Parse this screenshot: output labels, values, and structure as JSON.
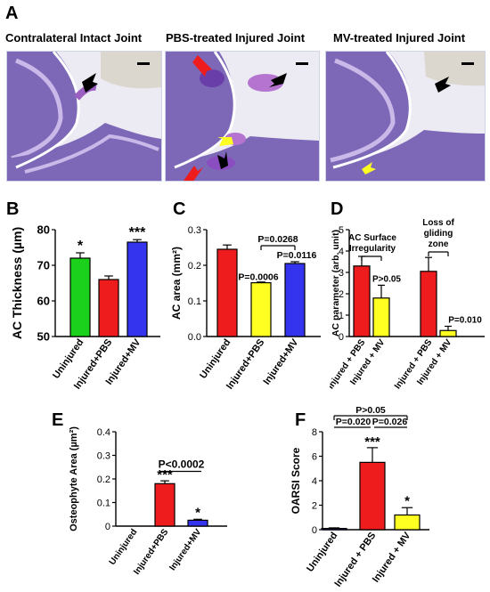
{
  "panel_a": {
    "letter": "A",
    "titles": [
      "Contralateral Intact Joint",
      "PBS-treated Injured Joint",
      "MV-treated Injured Joint"
    ]
  },
  "colors": {
    "green": "#1bd11b",
    "red": "#ee1c1c",
    "blue": "#3434ee",
    "yellow": "#ffff22",
    "tissue_purple": "#6d52b0",
    "tissue_bg": "#e8e9f4",
    "cartilage": "#9a5fc0"
  },
  "chart_data": [
    {
      "panel": "B",
      "type": "bar",
      "ylabel": "AC Thickness (µm)",
      "categories": [
        "Uninjured",
        "Injured+PBS",
        "Injured+MV"
      ],
      "values": [
        72,
        66,
        76.5
      ],
      "errors": [
        1.5,
        1.0,
        0.7
      ],
      "colors": [
        "#1bd11b",
        "#ee1c1c",
        "#3434ee"
      ],
      "ylim": [
        50,
        80
      ],
      "yticks": [
        50,
        60,
        70,
        80
      ],
      "annotations": [
        "*",
        "",
        "***"
      ]
    },
    {
      "panel": "C",
      "type": "bar",
      "ylabel": "AC area (mm²)",
      "categories": [
        "Uninjured",
        "Injured+PBS",
        "Injured+MV"
      ],
      "values": [
        0.245,
        0.151,
        0.205
      ],
      "errors": [
        0.012,
        0.002,
        0.005
      ],
      "colors": [
        "#ee1c1c",
        "#ffff22",
        "#3434ee"
      ],
      "ylim": [
        0,
        0.3
      ],
      "yticks": [
        0.0,
        0.1,
        0.2,
        0.3
      ],
      "annotations": [
        "P=0.0006",
        "P=0.0116"
      ],
      "bracket_label": "P=0.0268"
    },
    {
      "panel": "D",
      "type": "bar",
      "ylabel": "AC parameter (arb. unit)",
      "categories": [
        "Injured + PBS",
        "Injured + MV",
        "Injured + PBS",
        "Injured + MV"
      ],
      "groups": [
        "AC Surface Irregularity",
        "Loss of gliding zone"
      ],
      "values": [
        3.3,
        1.8,
        3.05,
        0.28
      ],
      "errors": [
        0.45,
        0.6,
        0.65,
        0.2
      ],
      "colors": [
        "#ee1c1c",
        "#ffff22",
        "#ee1c1c",
        "#ffff22"
      ],
      "ylim": [
        0,
        5
      ],
      "yticks": [
        0,
        1,
        2,
        3,
        4,
        5
      ],
      "annotations": [
        "P>0.05",
        "P=0.010"
      ]
    },
    {
      "panel": "E",
      "type": "bar",
      "ylabel": "Osteophyte Area (µm²)",
      "categories": [
        "Uninjured",
        "Injured+PBS",
        "Injured+MV"
      ],
      "values": [
        0,
        0.18,
        0.025
      ],
      "errors": [
        0,
        0.012,
        0.004
      ],
      "colors": [
        "#1bd11b",
        "#ee1c1c",
        "#3434ee"
      ],
      "ylim": [
        0,
        0.4
      ],
      "yticks": [
        0,
        0.1,
        0.2,
        0.3,
        0.4
      ],
      "annotations": [
        "***",
        "*"
      ],
      "bracket_label": "P<0.0002"
    },
    {
      "panel": "F",
      "type": "bar",
      "ylabel": "OARSI Score",
      "categories": [
        "Uninjured",
        "Injured + PBS",
        "Injured + MV"
      ],
      "values": [
        0.1,
        5.5,
        1.2
      ],
      "errors": [
        0.05,
        1.2,
        0.6
      ],
      "colors": [
        "#3434ee",
        "#ee1c1c",
        "#ffff22"
      ],
      "ylim": [
        0,
        8
      ],
      "yticks": [
        0,
        2,
        4,
        6,
        8
      ],
      "annotations": [
        "***",
        "*"
      ],
      "brackets": [
        "P>0.05",
        "P=0.020",
        "P=0.026"
      ]
    }
  ]
}
